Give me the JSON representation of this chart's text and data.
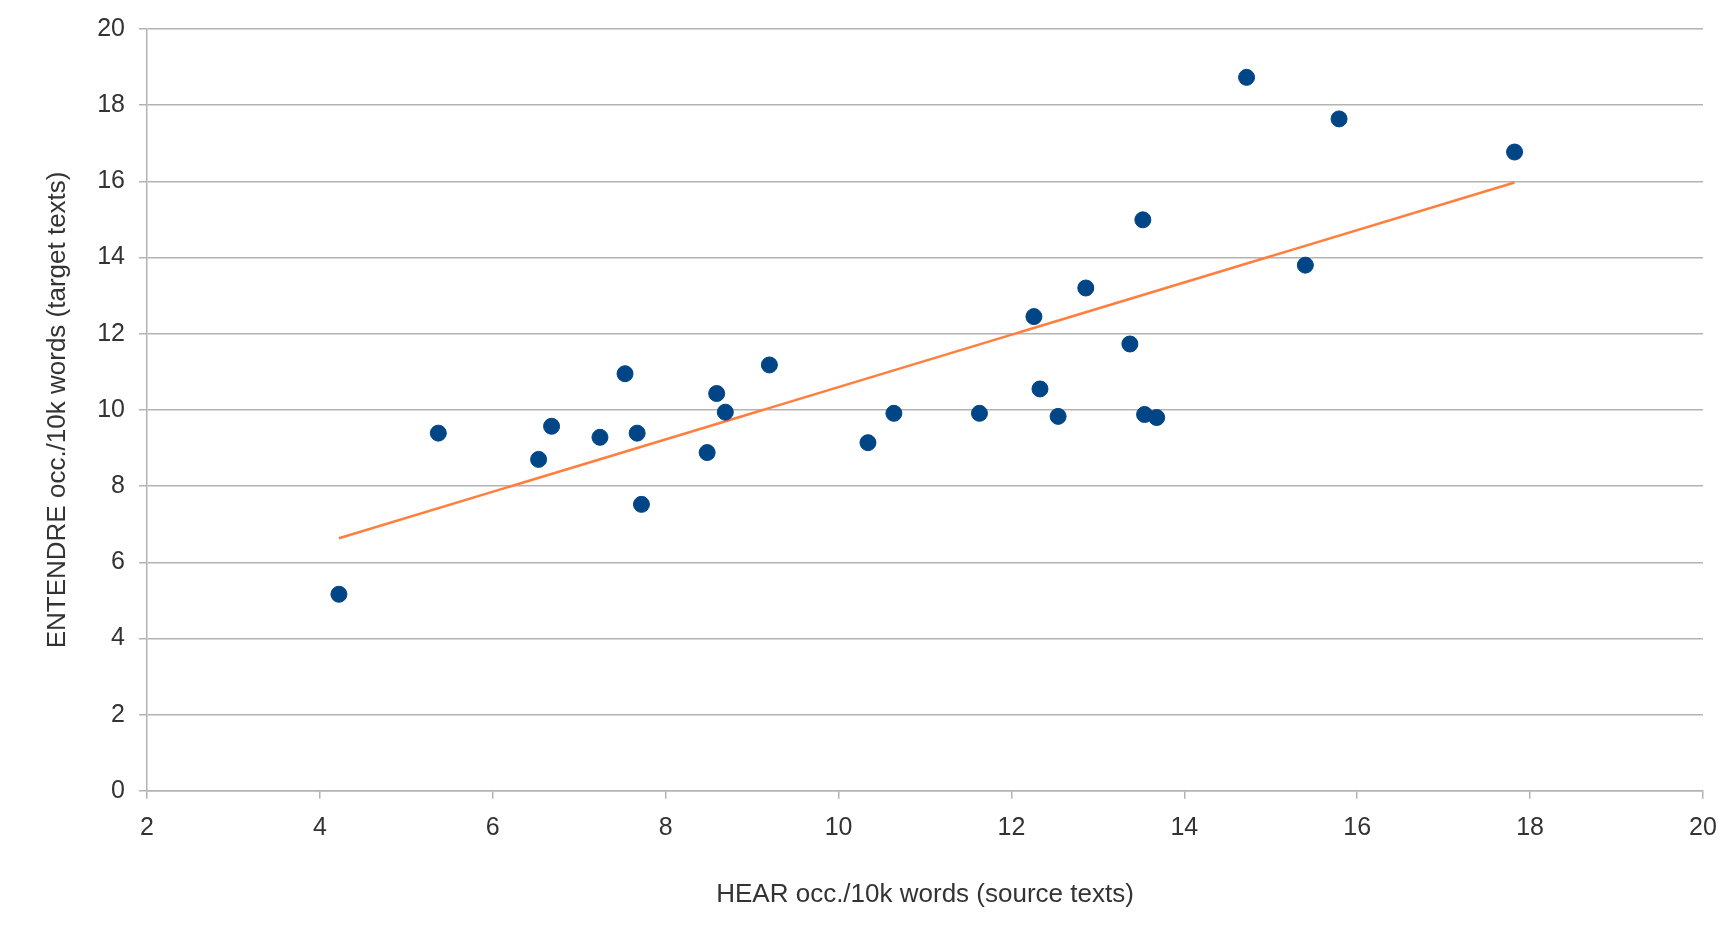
{
  "chart_data": {
    "type": "scatter",
    "xlabel": "HEAR occ./10k words (source texts)",
    "ylabel": "ENTENDRE occ./10k words (target texts)",
    "xlim": [
      2,
      20
    ],
    "xticks": [
      2,
      4,
      6,
      8,
      10,
      12,
      14,
      16,
      18,
      20
    ],
    "ylim": [
      0,
      20
    ],
    "yticks": [
      0,
      2,
      4,
      6,
      8,
      10,
      12,
      14,
      16,
      18,
      20
    ],
    "grid": "y",
    "legend": false,
    "marker": "circle",
    "series": [
      {
        "color": "#004586",
        "x": [
          4.22,
          5.37,
          6.53,
          6.68,
          7.24,
          7.53,
          7.67,
          7.72,
          8.48,
          8.59,
          8.69,
          9.2,
          10.34,
          10.64,
          11.63,
          12.26,
          12.33,
          12.54,
          12.86,
          13.37,
          13.52,
          13.54,
          13.68,
          14.72,
          15.4,
          15.79,
          17.82
        ],
        "values": [
          5.16,
          9.39,
          8.7,
          9.57,
          9.28,
          10.95,
          9.39,
          7.52,
          8.88,
          10.43,
          9.94,
          11.18,
          9.14,
          9.91,
          9.91,
          12.45,
          10.55,
          9.83,
          13.2,
          11.73,
          14.99,
          9.88,
          9.8,
          18.73,
          13.8,
          17.64,
          16.77
        ]
      },
      {
        "type": "line",
        "color": "#ff7f3f",
        "marker": "none",
        "x": [
          4.22,
          17.82
        ],
        "values": [
          6.63,
          15.97
        ]
      }
    ]
  }
}
